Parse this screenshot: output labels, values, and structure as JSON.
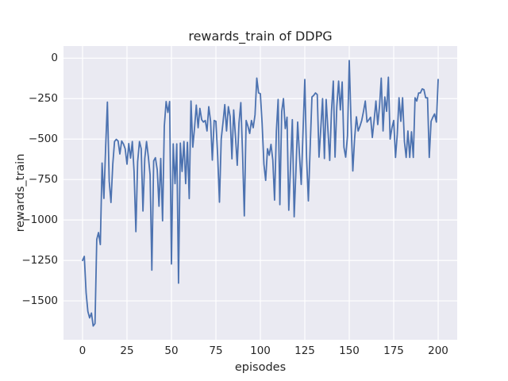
{
  "figure": {
    "title": "rewards_train of DDPG",
    "xlabel": "episodes",
    "ylabel": "rewards_train"
  },
  "chart_data": {
    "type": "line",
    "title": "rewards_train of DDPG",
    "xlabel": "episodes",
    "ylabel": "rewards_train",
    "style": "seaborn-darkgrid",
    "grid": true,
    "legend": "none",
    "x_ticks": [
      0,
      25,
      50,
      75,
      100,
      125,
      150,
      175,
      200
    ],
    "y_ticks": [
      0,
      -250,
      -500,
      -750,
      -1000,
      -1250,
      -1500
    ],
    "xlim": [
      -10.7,
      210.7
    ],
    "ylim": [
      -1740,
      75
    ],
    "colors": {
      "line": "#4C72B0",
      "axes_background": "#EAEAF2",
      "grid": "#FFFFFF",
      "text": "#262626",
      "figure_background": "#FFFFFF"
    },
    "series": [
      {
        "name": "rewards_train",
        "x_start": 0,
        "x_step": 1,
        "values": [
          -1250,
          -1225,
          -1450,
          -1565,
          -1605,
          -1575,
          -1655,
          -1640,
          -1120,
          -1078,
          -1152,
          -648,
          -867,
          -550,
          -272,
          -760,
          -892,
          -655,
          -515,
          -502,
          -512,
          -592,
          -512,
          -530,
          -560,
          -655,
          -528,
          -617,
          -515,
          -700,
          -1072,
          -640,
          -515,
          -560,
          -945,
          -620,
          -515,
          -610,
          -720,
          -1310,
          -635,
          -615,
          -690,
          -915,
          -620,
          -1005,
          -420,
          -268,
          -335,
          -268,
          -1272,
          -530,
          -775,
          -530,
          -1390,
          -525,
          -700,
          -515,
          -775,
          -520,
          -868,
          -265,
          -550,
          -430,
          -290,
          -430,
          -310,
          -380,
          -395,
          -385,
          -450,
          -300,
          -390,
          -630,
          -385,
          -390,
          -600,
          -890,
          -500,
          -395,
          -287,
          -450,
          -300,
          -360,
          -622,
          -320,
          -480,
          -662,
          -400,
          -275,
          -590,
          -975,
          -385,
          -420,
          -465,
          -385,
          -430,
          -350,
          -123,
          -215,
          -220,
          -400,
          -655,
          -755,
          -560,
          -600,
          -533,
          -630,
          -877,
          -450,
          -255,
          -905,
          -330,
          -250,
          -435,
          -365,
          -940,
          -660,
          -380,
          -980,
          -700,
          -395,
          -600,
          -780,
          -450,
          -132,
          -612,
          -882,
          -560,
          -240,
          -230,
          -215,
          -225,
          -612,
          -430,
          -250,
          -620,
          -255,
          -440,
          -632,
          -330,
          -142,
          -612,
          -300,
          -142,
          -320,
          -147,
          -550,
          -612,
          -480,
          -15,
          -400,
          -697,
          -500,
          -362,
          -450,
          -420,
          -385,
          -330,
          -265,
          -395,
          -380,
          -365,
          -490,
          -380,
          -265,
          -410,
          -300,
          -123,
          -450,
          -240,
          -328,
          -118,
          -500,
          -430,
          -385,
          -613,
          -470,
          -245,
          -390,
          -245,
          -515,
          -613,
          -450,
          -613,
          -455,
          -613,
          -245,
          -265,
          -215,
          -215,
          -190,
          -195,
          -245,
          -245,
          -613,
          -390,
          -365,
          -345,
          -395,
          -132
        ]
      }
    ]
  }
}
